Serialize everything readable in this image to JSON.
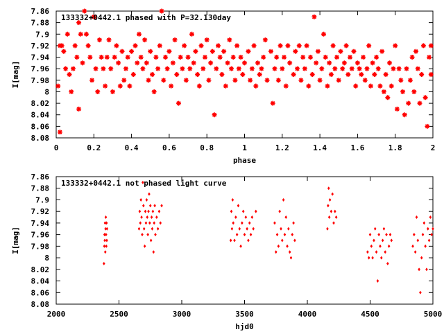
{
  "chart_data": [
    {
      "type": "scatter",
      "title": "133332+0442.1 phased with P=32.130day",
      "xlabel": "phase",
      "ylabel": "I[mag]",
      "xlim": [
        0,
        2
      ],
      "ylim": [
        7.86,
        8.08
      ],
      "y_inverted": true,
      "x_ticks": [
        "0",
        "0.2",
        "0.4",
        "0.6",
        "0.8",
        "1",
        "1.2",
        "1.4",
        "1.6",
        "1.8",
        "2"
      ],
      "x_tick_values": [
        0,
        0.2,
        0.4,
        0.6,
        0.8,
        1.0,
        1.2,
        1.4,
        1.6,
        1.8,
        2.0
      ],
      "y_ticks": [
        "7.86",
        "7.88",
        "7.9",
        "7.92",
        "7.94",
        "7.96",
        "7.98",
        "8",
        "8.02",
        "8.04",
        "8.06",
        "8.08"
      ],
      "y_tick_values": [
        7.86,
        7.88,
        7.9,
        7.92,
        7.94,
        7.96,
        7.98,
        8.0,
        8.02,
        8.04,
        8.06,
        8.08
      ],
      "marker_color": "#ff0000",
      "marker": "star",
      "points": [
        [
          0.01,
          7.99
        ],
        [
          0.02,
          8.07
        ],
        [
          0.02,
          7.92
        ],
        [
          0.03,
          7.92
        ],
        [
          0.04,
          7.93
        ],
        [
          0.05,
          7.96
        ],
        [
          0.06,
          7.9
        ],
        [
          0.07,
          7.97
        ],
        [
          0.08,
          8.0
        ],
        [
          0.09,
          7.96
        ],
        [
          0.1,
          7.92
        ],
        [
          0.11,
          7.94
        ],
        [
          0.12,
          7.88
        ],
        [
          0.12,
          8.03
        ],
        [
          0.13,
          7.9
        ],
        [
          0.14,
          7.95
        ],
        [
          0.15,
          7.86
        ],
        [
          0.16,
          7.9
        ],
        [
          0.17,
          7.92
        ],
        [
          0.18,
          7.94
        ],
        [
          0.19,
          7.98
        ],
        [
          0.2,
          7.87
        ],
        [
          0.21,
          7.96
        ],
        [
          0.22,
          8.0
        ],
        [
          0.23,
          7.91
        ],
        [
          0.24,
          7.94
        ],
        [
          0.25,
          7.96
        ],
        [
          0.26,
          7.99
        ],
        [
          0.27,
          7.94
        ],
        [
          0.28,
          7.91
        ],
        [
          0.29,
          7.96
        ],
        [
          0.3,
          8.0
        ],
        [
          0.31,
          7.94
        ],
        [
          0.32,
          7.92
        ],
        [
          0.33,
          7.95
        ],
        [
          0.34,
          7.99
        ],
        [
          0.35,
          7.93
        ],
        [
          0.36,
          7.98
        ],
        [
          0.37,
          7.96
        ],
        [
          0.38,
          7.94
        ],
        [
          0.39,
          7.99
        ],
        [
          0.4,
          7.93
        ],
        [
          0.41,
          7.97
        ],
        [
          0.42,
          7.92
        ],
        [
          0.43,
          7.95
        ],
        [
          0.44,
          7.9
        ],
        [
          0.45,
          7.94
        ],
        [
          0.46,
          7.96
        ],
        [
          0.47,
          7.91
        ],
        [
          0.48,
          7.95
        ],
        [
          0.49,
          7.98
        ],
        [
          0.5,
          7.93
        ],
        [
          0.51,
          7.97
        ],
        [
          0.52,
          8.0
        ],
        [
          0.53,
          7.94
        ],
        [
          0.54,
          7.96
        ],
        [
          0.55,
          7.92
        ],
        [
          0.56,
          7.86
        ],
        [
          0.57,
          7.98
        ],
        [
          0.58,
          7.94
        ],
        [
          0.59,
          7.96
        ],
        [
          0.6,
          7.93
        ],
        [
          0.61,
          7.99
        ],
        [
          0.62,
          7.95
        ],
        [
          0.63,
          7.91
        ],
        [
          0.64,
          7.97
        ],
        [
          0.65,
          8.02
        ],
        [
          0.66,
          7.94
        ],
        [
          0.67,
          7.96
        ],
        [
          0.68,
          7.92
        ],
        [
          0.69,
          7.98
        ],
        [
          0.7,
          7.94
        ],
        [
          0.71,
          7.96
        ],
        [
          0.72,
          7.9
        ],
        [
          0.73,
          7.95
        ],
        [
          0.74,
          7.93
        ],
        [
          0.75,
          7.97
        ],
        [
          0.76,
          7.99
        ],
        [
          0.77,
          7.92
        ],
        [
          0.78,
          7.96
        ],
        [
          0.79,
          7.94
        ],
        [
          0.8,
          7.91
        ],
        [
          0.81,
          7.98
        ],
        [
          0.82,
          7.95
        ],
        [
          0.83,
          7.93
        ],
        [
          0.84,
          8.04
        ],
        [
          0.85,
          7.96
        ],
        [
          0.86,
          7.92
        ],
        [
          0.87,
          7.94
        ],
        [
          0.88,
          7.97
        ],
        [
          0.89,
          7.93
        ],
        [
          0.9,
          7.99
        ],
        [
          0.91,
          7.95
        ],
        [
          0.92,
          7.91
        ],
        [
          0.93,
          7.96
        ],
        [
          0.94,
          7.94
        ],
        [
          0.95,
          7.98
        ],
        [
          0.96,
          7.92
        ],
        [
          0.97,
          7.96
        ],
        [
          0.98,
          7.94
        ],
        [
          0.99,
          7.97
        ],
        [
          1.0,
          7.95
        ],
        [
          1.02,
          7.93
        ],
        [
          1.03,
          7.98
        ],
        [
          1.04,
          7.96
        ],
        [
          1.05,
          7.92
        ],
        [
          1.06,
          7.99
        ],
        [
          1.07,
          7.95
        ],
        [
          1.08,
          7.97
        ],
        [
          1.09,
          7.96
        ],
        [
          1.1,
          7.94
        ],
        [
          1.11,
          7.91
        ],
        [
          1.12,
          7.98
        ],
        [
          1.14,
          7.93
        ],
        [
          1.15,
          8.02
        ],
        [
          1.16,
          7.96
        ],
        [
          1.17,
          7.94
        ],
        [
          1.18,
          7.98
        ],
        [
          1.19,
          7.92
        ],
        [
          1.2,
          7.96
        ],
        [
          1.21,
          7.94
        ],
        [
          1.22,
          7.99
        ],
        [
          1.23,
          7.92
        ],
        [
          1.24,
          7.95
        ],
        [
          1.26,
          7.97
        ],
        [
          1.27,
          7.93
        ],
        [
          1.28,
          7.96
        ],
        [
          1.29,
          7.92
        ],
        [
          1.3,
          7.98
        ],
        [
          1.31,
          7.94
        ],
        [
          1.32,
          7.96
        ],
        [
          1.33,
          7.92
        ],
        [
          1.34,
          7.99
        ],
        [
          1.35,
          7.94
        ],
        [
          1.36,
          7.97
        ],
        [
          1.37,
          7.87
        ],
        [
          1.38,
          7.95
        ],
        [
          1.39,
          7.93
        ],
        [
          1.4,
          7.98
        ],
        [
          1.41,
          7.96
        ],
        [
          1.42,
          7.9
        ],
        [
          1.43,
          7.94
        ],
        [
          1.44,
          7.99
        ],
        [
          1.45,
          7.95
        ],
        [
          1.46,
          7.97
        ],
        [
          1.47,
          7.92
        ],
        [
          1.48,
          7.96
        ],
        [
          1.49,
          7.94
        ],
        [
          1.5,
          7.98
        ],
        [
          1.51,
          7.93
        ],
        [
          1.52,
          7.96
        ],
        [
          1.53,
          7.95
        ],
        [
          1.54,
          7.92
        ],
        [
          1.55,
          7.97
        ],
        [
          1.56,
          7.94
        ],
        [
          1.57,
          7.96
        ],
        [
          1.58,
          7.93
        ],
        [
          1.59,
          7.99
        ],
        [
          1.6,
          7.95
        ],
        [
          1.61,
          7.96
        ],
        [
          1.62,
          7.97
        ],
        [
          1.63,
          7.94
        ],
        [
          1.64,
          7.98
        ],
        [
          1.65,
          7.96
        ],
        [
          1.66,
          7.92
        ],
        [
          1.67,
          7.99
        ],
        [
          1.68,
          7.95
        ],
        [
          1.69,
          7.97
        ],
        [
          1.7,
          7.94
        ],
        [
          1.71,
          7.96
        ],
        [
          1.72,
          7.99
        ],
        [
          1.73,
          7.93
        ],
        [
          1.74,
          8.0
        ],
        [
          1.75,
          7.97
        ],
        [
          1.76,
          8.01
        ],
        [
          1.77,
          7.95
        ],
        [
          1.78,
          7.99
        ],
        [
          1.79,
          7.96
        ],
        [
          1.8,
          7.92
        ],
        [
          1.81,
          8.03
        ],
        [
          1.82,
          7.96
        ],
        [
          1.83,
          7.98
        ],
        [
          1.84,
          8.0
        ],
        [
          1.85,
          8.04
        ],
        [
          1.86,
          7.96
        ],
        [
          1.87,
          8.02
        ],
        [
          1.88,
          7.98
        ],
        [
          1.89,
          7.94
        ],
        [
          1.9,
          8.0
        ],
        [
          1.91,
          7.93
        ],
        [
          1.92,
          7.96
        ],
        [
          1.93,
          8.02
        ],
        [
          1.94,
          7.97
        ],
        [
          1.95,
          7.92
        ],
        [
          1.96,
          8.01
        ],
        [
          1.97,
          8.06
        ],
        [
          1.98,
          7.94
        ],
        [
          1.99,
          7.97
        ],
        [
          1.99,
          7.92
        ]
      ]
    },
    {
      "type": "scatter",
      "title": "133332+0442.1 not phased light curve",
      "xlabel": "hjd0",
      "ylabel": "I[mag]",
      "xlim": [
        2000,
        5000
      ],
      "ylim": [
        7.86,
        8.08
      ],
      "y_inverted": true,
      "x_ticks": [
        "2000",
        "2500",
        "3000",
        "3500",
        "4000",
        "4500",
        "5000"
      ],
      "x_tick_values": [
        2000,
        2500,
        3000,
        3500,
        4000,
        4500,
        5000
      ],
      "y_ticks": [
        "7.86",
        "7.88",
        "7.9",
        "7.92",
        "7.94",
        "7.96",
        "7.98",
        "8",
        "8.02",
        "8.04",
        "8.06",
        "8.08"
      ],
      "y_tick_values": [
        7.86,
        7.88,
        7.9,
        7.92,
        7.94,
        7.96,
        7.98,
        8.0,
        8.02,
        8.04,
        8.06,
        8.08
      ],
      "marker_color": "#ff0000",
      "marker": "diamond",
      "points": [
        [
          2380,
          8.01
        ],
        [
          2383,
          7.98
        ],
        [
          2385,
          7.96
        ],
        [
          2387,
          7.97
        ],
        [
          2389,
          7.94
        ],
        [
          2391,
          7.99
        ],
        [
          2393,
          7.95
        ],
        [
          2395,
          7.93
        ],
        [
          2397,
          7.96
        ],
        [
          2399,
          7.98
        ],
        [
          2401,
          7.94
        ],
        [
          2403,
          7.97
        ],
        [
          2405,
          7.95
        ],
        [
          2660,
          7.95
        ],
        [
          2665,
          7.92
        ],
        [
          2670,
          7.94
        ],
        [
          2675,
          7.9
        ],
        [
          2680,
          7.93
        ],
        [
          2685,
          7.96
        ],
        [
          2690,
          7.87
        ],
        [
          2695,
          7.91
        ],
        [
          2700,
          7.95
        ],
        [
          2705,
          7.98
        ],
        [
          2710,
          7.92
        ],
        [
          2715,
          7.94
        ],
        [
          2720,
          7.9
        ],
        [
          2725,
          7.93
        ],
        [
          2730,
          7.96
        ],
        [
          2735,
          7.92
        ],
        [
          2740,
          7.89
        ],
        [
          2745,
          7.94
        ],
        [
          2750,
          7.91
        ],
        [
          2755,
          7.97
        ],
        [
          2760,
          7.93
        ],
        [
          2765,
          7.95
        ],
        [
          2770,
          7.92
        ],
        [
          2775,
          7.99
        ],
        [
          2780,
          7.94
        ],
        [
          2785,
          7.91
        ],
        [
          2790,
          7.96
        ],
        [
          2800,
          7.93
        ],
        [
          2810,
          7.95
        ],
        [
          2820,
          7.92
        ],
        [
          2830,
          7.94
        ],
        [
          2840,
          7.91
        ],
        [
          3390,
          7.97
        ],
        [
          3395,
          7.92
        ],
        [
          3400,
          7.95
        ],
        [
          3405,
          7.9
        ],
        [
          3410,
          7.94
        ],
        [
          3420,
          7.97
        ],
        [
          3430,
          7.93
        ],
        [
          3440,
          7.96
        ],
        [
          3450,
          7.91
        ],
        [
          3460,
          7.95
        ],
        [
          3470,
          7.98
        ],
        [
          3480,
          7.94
        ],
        [
          3490,
          7.92
        ],
        [
          3500,
          7.96
        ],
        [
          3510,
          7.93
        ],
        [
          3520,
          7.95
        ],
        [
          3530,
          7.97
        ],
        [
          3540,
          7.94
        ],
        [
          3550,
          7.96
        ],
        [
          3560,
          7.93
        ],
        [
          3570,
          7.95
        ],
        [
          3590,
          7.92
        ],
        [
          3740,
          7.94
        ],
        [
          3750,
          7.99
        ],
        [
          3760,
          7.96
        ],
        [
          3770,
          7.98
        ],
        [
          3780,
          7.92
        ],
        [
          3790,
          7.95
        ],
        [
          3800,
          7.97
        ],
        [
          3810,
          7.9
        ],
        [
          3820,
          7.96
        ],
        [
          3830,
          7.93
        ],
        [
          3840,
          7.98
        ],
        [
          3850,
          7.95
        ],
        [
          3860,
          7.99
        ],
        [
          3870,
          8.0
        ],
        [
          3880,
          7.96
        ],
        [
          3890,
          7.94
        ],
        [
          3900,
          7.97
        ],
        [
          4160,
          7.95
        ],
        [
          4165,
          7.91
        ],
        [
          4170,
          7.88
        ],
        [
          4175,
          7.93
        ],
        [
          4180,
          7.9
        ],
        [
          4190,
          7.92
        ],
        [
          4200,
          7.89
        ],
        [
          4210,
          7.94
        ],
        [
          4220,
          7.92
        ],
        [
          4230,
          7.93
        ],
        [
          4480,
          7.99
        ],
        [
          4490,
          8.0
        ],
        [
          4500,
          7.96
        ],
        [
          4510,
          7.98
        ],
        [
          4520,
          8.0
        ],
        [
          4530,
          7.97
        ],
        [
          4540,
          7.95
        ],
        [
          4550,
          7.99
        ],
        [
          4560,
          8.04
        ],
        [
          4570,
          7.96
        ],
        [
          4580,
          7.98
        ],
        [
          4590,
          8.0
        ],
        [
          4600,
          7.97
        ],
        [
          4610,
          7.95
        ],
        [
          4620,
          7.99
        ],
        [
          4630,
          7.96
        ],
        [
          4640,
          8.01
        ],
        [
          4650,
          7.98
        ],
        [
          4660,
          7.96
        ],
        [
          4670,
          7.97
        ],
        [
          4840,
          7.98
        ],
        [
          4850,
          7.96
        ],
        [
          4860,
          7.99
        ],
        [
          4870,
          7.93
        ],
        [
          4880,
          7.97
        ],
        [
          4890,
          8.02
        ],
        [
          4900,
          8.06
        ],
        [
          4910,
          8.0
        ],
        [
          4920,
          7.96
        ],
        [
          4930,
          7.94
        ],
        [
          4940,
          7.98
        ],
        [
          4950,
          8.02
        ],
        [
          4960,
          7.95
        ],
        [
          4970,
          7.97
        ],
        [
          4980,
          7.93
        ],
        [
          4990,
          7.96
        ],
        [
          5000,
          7.95
        ]
      ]
    }
  ]
}
